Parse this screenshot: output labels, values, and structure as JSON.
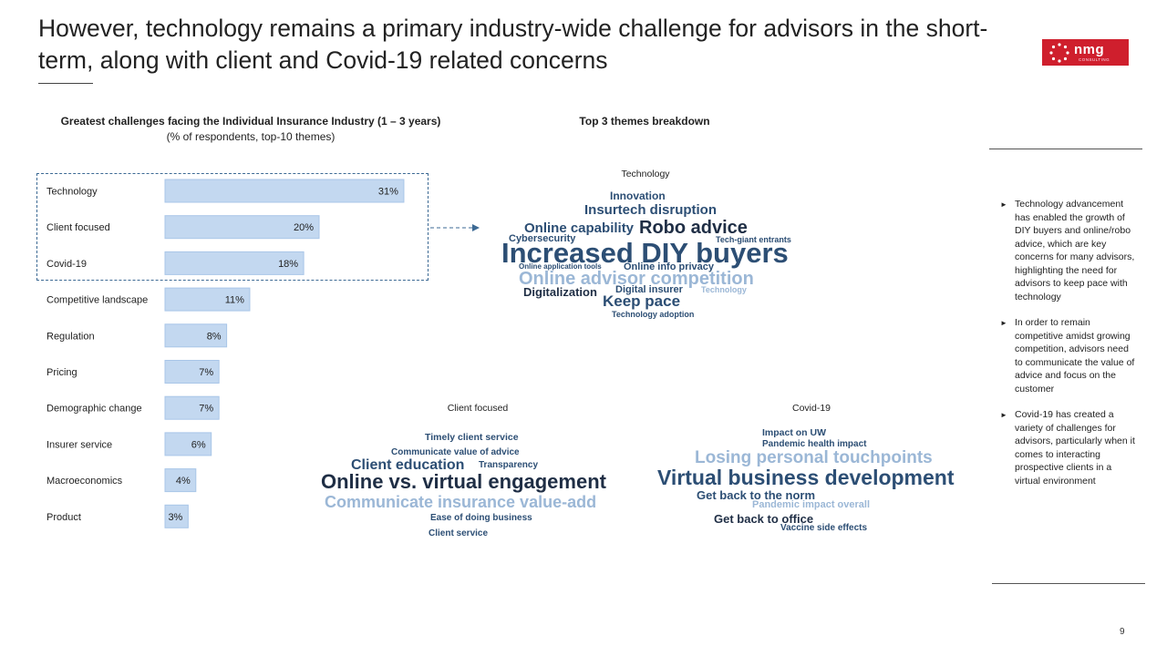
{
  "slide": {
    "title": "However, technology remains a primary industry-wide challenge for advisors in the short-term, along with client and Covid-19 related concerns",
    "page_number": "9",
    "logo_text": "nmg",
    "logo_subtext": "CONSULTING"
  },
  "left_section": {
    "title": "Greatest challenges facing the Individual Insurance Industry (1 – 3 years)",
    "subtitle": "(% of respondents, top-10 themes)"
  },
  "right_section": {
    "title": "Top 3 themes breakdown"
  },
  "chart_data": {
    "type": "bar",
    "orientation": "horizontal",
    "title": "Greatest challenges facing the Individual Insurance Industry (1 – 3 years)",
    "subtitle": "(% of respondents, top-10 themes)",
    "categories": [
      "Technology",
      "Client focused",
      "Covid-19",
      "Competitive landscape",
      "Regulation",
      "Pricing",
      "Demographic change",
      "Insurer service",
      "Macroeconomics",
      "Product"
    ],
    "values": [
      31,
      20,
      18,
      11,
      8,
      7,
      7,
      6,
      4,
      3
    ],
    "value_labels": [
      "31%",
      "20%",
      "18%",
      "11%",
      "8%",
      "7%",
      "7%",
      "6%",
      "4%",
      "3%"
    ],
    "unit": "%",
    "bar_color": "#c3d8f0",
    "bar_border_color": "#a9c6e8",
    "highlighted_categories": [
      "Technology",
      "Client focused",
      "Covid-19"
    ],
    "grid": false,
    "legend": "none"
  },
  "word_clouds": {
    "technology": {
      "title": "Technology",
      "words": [
        "Innovation",
        "Insurtech disruption",
        "Online capability",
        "Robo advice",
        "Cybersecurity",
        "Tech-giant entrants",
        "Increased DIY buyers",
        "Online application tools",
        "Online info privacy",
        "Online advisor competition",
        "Digitalization",
        "Digital insurer",
        "Technology",
        "Keep pace",
        "Technology adoption"
      ]
    },
    "client_focused": {
      "title": "Client focused",
      "words": [
        "Timely client service",
        "Communicate value of advice",
        "Client education",
        "Transparency",
        "Online vs. virtual engagement",
        "Communicate insurance value-add",
        "Ease of doing business",
        "Client service"
      ]
    },
    "covid": {
      "title": "Covid-19",
      "words": [
        "Impact on UW",
        "Pandemic health impact",
        "Losing personal touchpoints",
        "Virtual business development",
        "Get back to the norm",
        "Pandemic impact overall",
        "Get back to office",
        "Vaccine side effects"
      ]
    }
  },
  "insights": [
    "Technology advancement has enabled the growth of DIY buyers and online/robo advice, which are key concerns for many advisors, highlighting the need for advisors to keep pace with technology",
    "In order to remain competitive amidst growing competition, advisors need to communicate the value of advice and focus on the customer",
    "Covid-19 has created a variety of challenges for advisors, particularly when it comes to interacting prospective clients in a virtual environment"
  ],
  "colors": {
    "brand_red": "#cf1f2d",
    "cloud_dark": "#1f2e45",
    "cloud_mid": "#2c4e74",
    "cloud_light": "#9bb7d6",
    "highlight_border": "#3d6a94"
  }
}
